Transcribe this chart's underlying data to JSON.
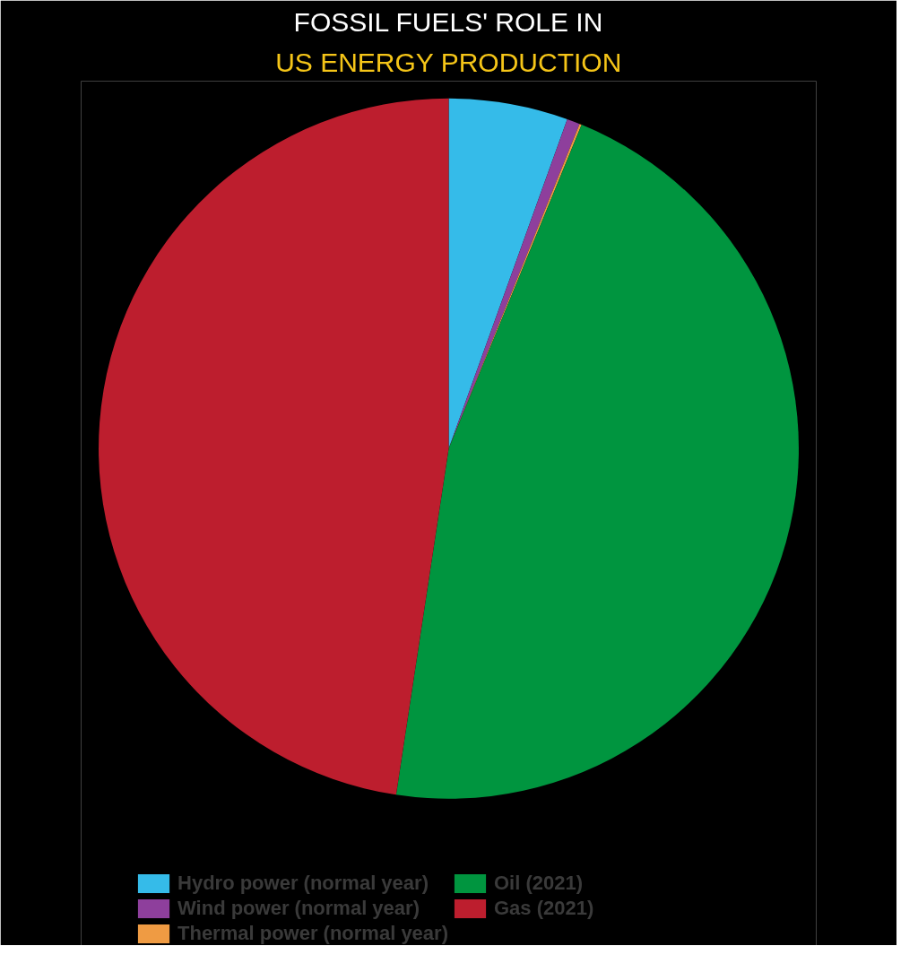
{
  "chart_data": {
    "type": "pie",
    "title": "FOSSIL FUELS' ROLE IN",
    "subtitle": "US ENERGY PRODUCTION",
    "categories": [
      "Hydro power (normal year)",
      "Wind power (normal year)",
      "Thermal power (normal year)",
      "Oil (2021)",
      "Gas (2021)"
    ],
    "values": [
      5.5,
      0.6,
      0.1,
      46.2,
      47.6
    ],
    "colors": [
      "#35bbe9",
      "#8e3f9c",
      "#ef9b43",
      "#00953f",
      "#bd1e2e"
    ],
    "legend": "bottom"
  }
}
